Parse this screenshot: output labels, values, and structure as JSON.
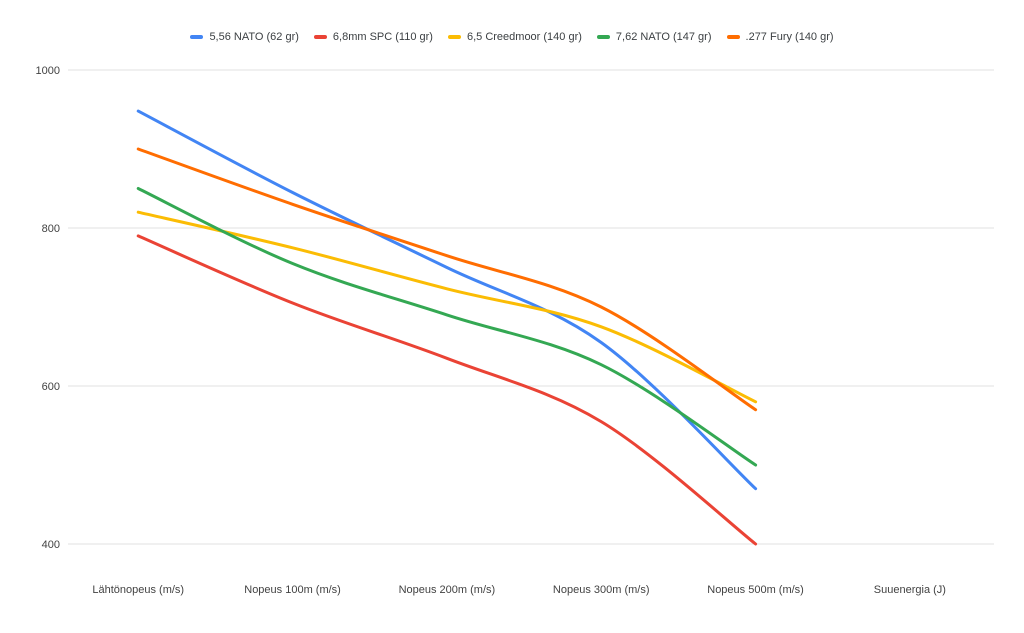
{
  "chart_data": {
    "type": "line",
    "smooth": true,
    "grid": true,
    "legend_position": "top",
    "background_color": "#ffffff",
    "gridline_color": "#e2e2e2",
    "text_color": "#424242",
    "categories": [
      "Lähtönopeus (m/s)",
      "Nopeus 100m (m/s)",
      "Nopeus 200m (m/s)",
      "Nopeus 300m (m/s)",
      "Nopeus 500m (m/s)",
      "Suuenergia (J)"
    ],
    "series": [
      {
        "name": "5,56 NATO (62 gr)",
        "color": "#4285F4",
        "values": [
          948,
          845,
          750,
          655,
          470,
          null
        ]
      },
      {
        "name": "6,8mm SPC (110 gr)",
        "color": "#EA4335",
        "values": [
          790,
          705,
          635,
          555,
          400,
          null
        ]
      },
      {
        "name": "6,5 Creedmoor (140 gr)",
        "color": "#FBBC04",
        "values": [
          820,
          775,
          723,
          675,
          580,
          null
        ]
      },
      {
        "name": "7,62 NATO (147 gr)",
        "color": "#34A853",
        "values": [
          850,
          755,
          690,
          627,
          500,
          null
        ]
      },
      {
        "name": ".277 Fury (140 gr)",
        "color": "#FF6D01",
        "values": [
          900,
          830,
          765,
          700,
          570,
          null
        ]
      }
    ],
    "ylim": [
      400,
      1000
    ],
    "yticks": [
      400,
      600,
      800,
      1000
    ],
    "title": "",
    "xlabel": "",
    "ylabel": ""
  }
}
